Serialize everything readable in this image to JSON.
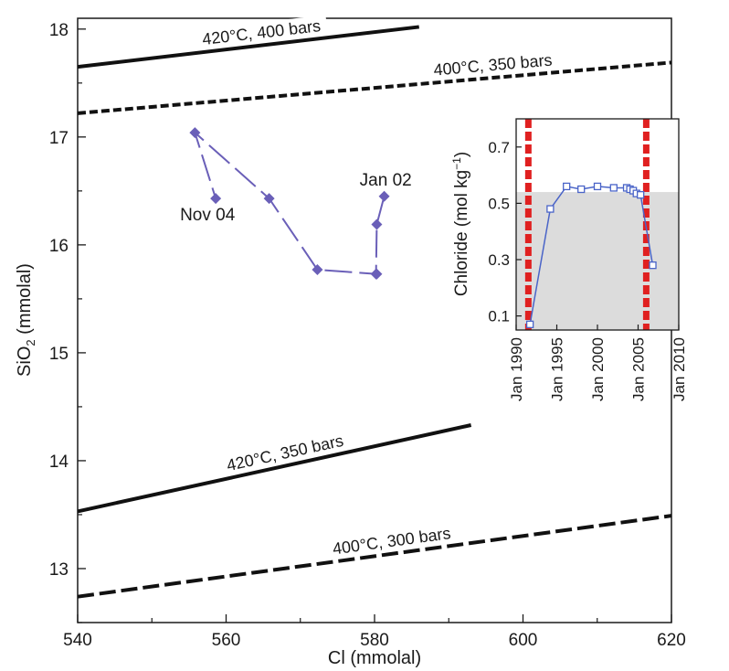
{
  "chart_data": [
    {
      "type": "line",
      "xlabel": "Cl (mmolal)",
      "ylabel_main": "SiO",
      "ylabel_sub": "2",
      "ylabel_unit": " (mmolal)",
      "xlim": [
        540,
        620
      ],
      "ylim": [
        12.5,
        18.1
      ],
      "xticks": [
        540,
        560,
        580,
        600,
        620
      ],
      "yticks": [
        13,
        14,
        15,
        16,
        17,
        18
      ],
      "reference_lines": [
        {
          "label": "420°C, 400 bars",
          "style": "solid",
          "x": [
            540,
            586
          ],
          "y": [
            17.65,
            18.02
          ]
        },
        {
          "label": "400°C, 350 bars",
          "style": "dashed",
          "x": [
            540,
            620
          ],
          "y": [
            17.22,
            17.69
          ]
        },
        {
          "label": "420°C, 350 bars",
          "style": "solid",
          "x": [
            540,
            593
          ],
          "y": [
            13.53,
            14.33
          ]
        },
        {
          "label": "400°C, 300 bars",
          "style": "dashed",
          "x": [
            540,
            620
          ],
          "y": [
            12.74,
            13.49
          ]
        }
      ],
      "series": [
        {
          "color": "#6a5fb8",
          "x": [
            581.3,
            580.3,
            580.2,
            580.3,
            572.3,
            565.8,
            555.8,
            558.6
          ],
          "y": [
            16.45,
            16.19,
            15.73,
            15.73,
            15.77,
            16.43,
            17.04,
            16.43
          ]
        }
      ],
      "annotations": [
        {
          "text": "Jan 02",
          "x": 581.5,
          "y": 16.6
        },
        {
          "text": "Nov 04",
          "x": 557.5,
          "y": 16.28
        }
      ]
    },
    {
      "type": "line",
      "ylabel_main": "Chloride (mol kg",
      "ylabel_sup": "−1",
      "ylabel_close": ")",
      "xlim": [
        1990,
        2010
      ],
      "ylim": [
        0.05,
        0.8
      ],
      "yticks": [
        0.1,
        0.3,
        0.5,
        0.7
      ],
      "ytick_labels": [
        "0.1",
        "0.3",
        "0.5",
        "0.7"
      ],
      "xticks": [
        1990,
        1995,
        2000,
        2005,
        2010
      ],
      "xtick_labels": [
        "Jan 1990",
        "Jan 1995",
        "Jan 2000",
        "Jan 2005",
        "Jan 2010"
      ],
      "shaded_below": 0.54,
      "vertical_markers": [
        1991.5,
        2006.0
      ],
      "series": [
        {
          "color": "#4a64c8",
          "x": [
            1991.7,
            1994.2,
            1996.2,
            1998.0,
            2000.0,
            2002.0,
            2003.6,
            2004.0,
            2004.4,
            2004.8,
            2005.3,
            2006.8
          ],
          "y": [
            0.07,
            0.48,
            0.56,
            0.55,
            0.56,
            0.555,
            0.555,
            0.55,
            0.545,
            0.535,
            0.53,
            0.28
          ]
        }
      ]
    }
  ],
  "colors": {
    "axis": "#1a1a1a",
    "main_series": "#6a5fb8",
    "inset_series": "#4a64c8",
    "inset_shade": "#dcdcdc",
    "inset_marker": "#e02020"
  }
}
